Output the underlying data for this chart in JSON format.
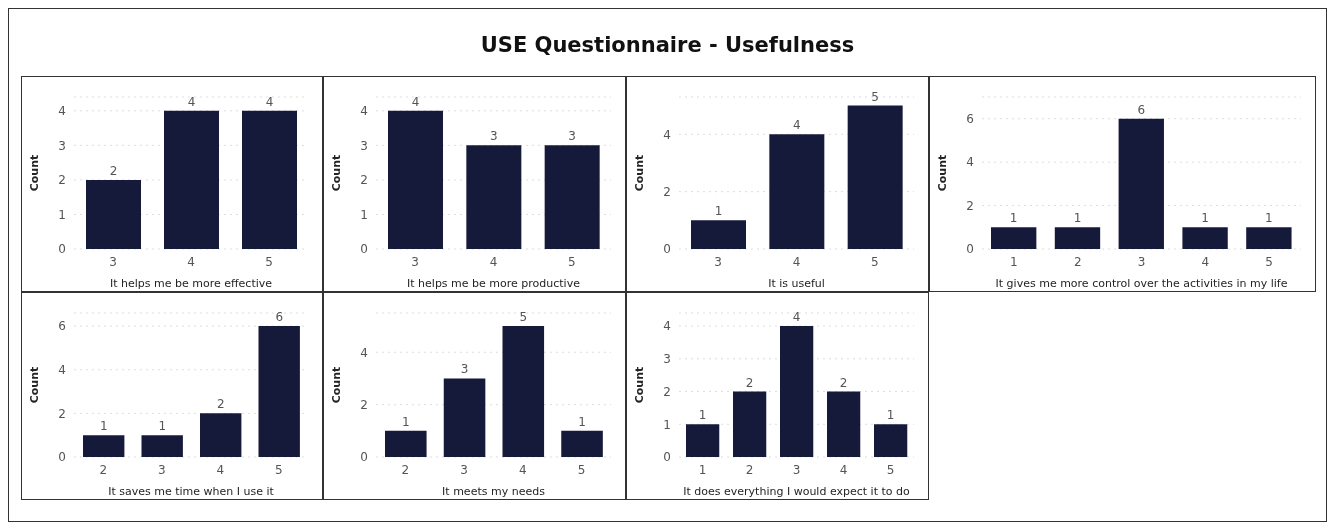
{
  "chart_data": [
    {
      "type": "other",
      "title": "USE Questionnaire - Usefulness"
    },
    {
      "type": "bar",
      "xlabel": "It helps me be more effective",
      "ylabel": "Count",
      "categories": [
        "3",
        "4",
        "5"
      ],
      "values": [
        2,
        4,
        4
      ],
      "color": "#161a3a",
      "ylim": [
        0,
        4.4
      ],
      "yticks": [
        0,
        1,
        2,
        3,
        4
      ],
      "grid": "y",
      "data_labels": true
    },
    {
      "type": "bar",
      "xlabel": "It helps me be more productive",
      "ylabel": "Count",
      "categories": [
        "3",
        "4",
        "5"
      ],
      "values": [
        4,
        3,
        3
      ],
      "color": "#161a3a",
      "ylim": [
        0,
        4.4
      ],
      "yticks": [
        0,
        1,
        2,
        3,
        4
      ],
      "grid": "y",
      "data_labels": true
    },
    {
      "type": "bar",
      "xlabel": "It is useful",
      "ylabel": "Count",
      "categories": [
        "3",
        "4",
        "5"
      ],
      "values": [
        1,
        4,
        5
      ],
      "color": "#161a3a",
      "ylim": [
        0,
        5.3
      ],
      "yticks": [
        0,
        2,
        4
      ],
      "grid": "y",
      "data_labels": true
    },
    {
      "type": "bar",
      "xlabel": "It gives me more control over the activities in my life",
      "ylabel": "Count",
      "categories": [
        "1",
        "2",
        "3",
        "4",
        "5"
      ],
      "values": [
        1,
        1,
        6,
        1,
        1
      ],
      "color": "#161a3a",
      "ylim": [
        0,
        7
      ],
      "yticks": [
        0,
        2,
        4,
        6
      ],
      "grid": "y",
      "data_labels": true
    },
    {
      "type": "bar",
      "xlabel": "It saves me time when I use it",
      "ylabel": "Count",
      "categories": [
        "2",
        "3",
        "4",
        "5"
      ],
      "values": [
        1,
        1,
        2,
        6
      ],
      "color": "#161a3a",
      "ylim": [
        0,
        6.6
      ],
      "yticks": [
        0,
        2,
        4,
        6
      ],
      "grid": "y",
      "data_labels": true
    },
    {
      "type": "bar",
      "xlabel": "It meets my needs",
      "ylabel": "Count",
      "categories": [
        "2",
        "3",
        "4",
        "5"
      ],
      "values": [
        1,
        3,
        5,
        1
      ],
      "color": "#161a3a",
      "ylim": [
        0,
        5.5
      ],
      "yticks": [
        0,
        2,
        4
      ],
      "grid": "y",
      "data_labels": true
    },
    {
      "type": "bar",
      "xlabel": "It does everything I would expect it to do",
      "ylabel": "Count",
      "categories": [
        "1",
        "2",
        "3",
        "4",
        "5"
      ],
      "values": [
        1,
        2,
        4,
        2,
        1
      ],
      "color": "#161a3a",
      "ylim": [
        0,
        4.4
      ],
      "yticks": [
        0,
        1,
        2,
        3,
        4
      ],
      "grid": "y",
      "data_labels": true
    }
  ]
}
